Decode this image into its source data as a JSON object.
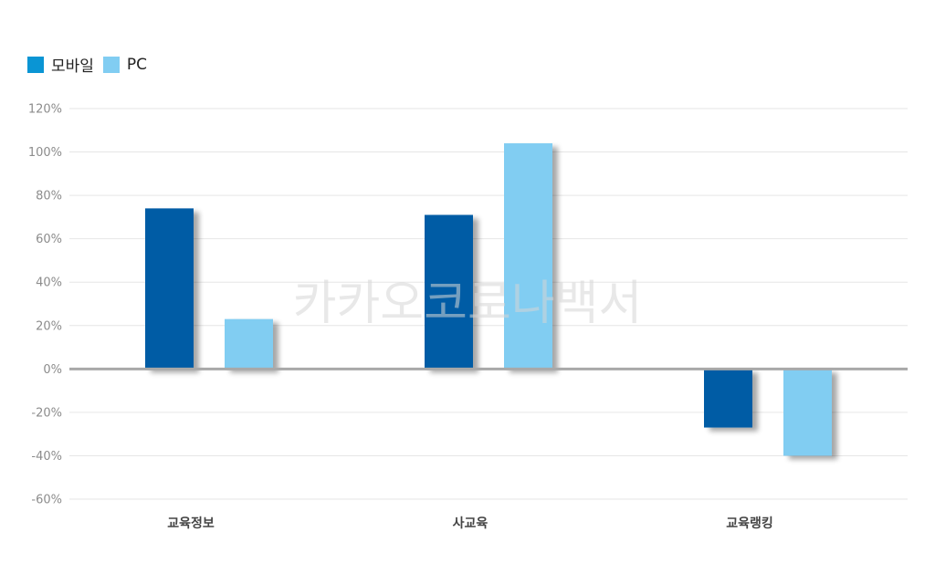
{
  "chart_data": {
    "type": "bar",
    "categories": [
      "교육정보",
      "사교육",
      "교육랭킹"
    ],
    "series": [
      {
        "name": "모바일",
        "values": [
          74,
          71,
          -27
        ],
        "color": "#005BA5"
      },
      {
        "name": "PC",
        "values": [
          23,
          104,
          -40
        ],
        "color": "#81CDF2"
      }
    ],
    "ylim": [
      -60,
      120
    ],
    "yticks": [
      120,
      100,
      80,
      60,
      40,
      20,
      0,
      -20,
      -40,
      -60
    ],
    "ytick_suffix": "%",
    "grid": true,
    "legend_position": "top-left",
    "legend_swatch_colors": [
      "#0A95D4",
      "#81CDF2"
    ]
  },
  "watermark": "카카오코로나백서"
}
